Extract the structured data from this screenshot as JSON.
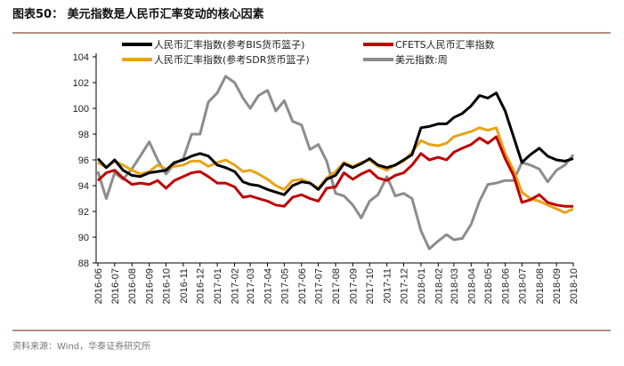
{
  "header": {
    "title": "图表50：  美元指数是人民币汇率变动的核心因素"
  },
  "footer": {
    "source": "资料来源：Wind，华泰证券研究所"
  },
  "colors": {
    "rule": "#9a6a5a",
    "bis": "#000000",
    "cfets": "#c00000",
    "sdr": "#e8a317",
    "dxy": "#8c8c8c"
  },
  "chart_data": {
    "type": "line",
    "title": "",
    "xlabel": "",
    "ylabel": "",
    "ylim": [
      88,
      104
    ],
    "yticks": [
      "88",
      "90",
      "92",
      "94",
      "96",
      "98",
      "100",
      "102",
      "104"
    ],
    "xlim": [
      "2016-06-01",
      "2018-10-01"
    ],
    "xticks": [
      "2016-06",
      "2016-07",
      "2016-08",
      "2016-09",
      "2016-10",
      "2016-11",
      "2016-12",
      "2017-01",
      "2017-02",
      "2017-03",
      "2017-04",
      "2017-05",
      "2017-06",
      "2017-07",
      "2017-08",
      "2017-09",
      "2017-10",
      "2017-11",
      "2017-12",
      "2018-01",
      "2018-02",
      "2018-03",
      "2018-04",
      "2018-05",
      "2018-06",
      "2018-07",
      "2018-08",
      "2018-09",
      "2018-10"
    ],
    "grid": false,
    "legend_position": "top",
    "x": [
      "2016-06-01",
      "2016-06-16",
      "2016-07-01",
      "2016-07-16",
      "2016-08-01",
      "2016-08-16",
      "2016-09-01",
      "2016-09-16",
      "2016-10-01",
      "2016-10-16",
      "2016-11-01",
      "2016-11-16",
      "2016-12-01",
      "2016-12-16",
      "2017-01-01",
      "2017-01-16",
      "2017-02-01",
      "2017-02-16",
      "2017-03-01",
      "2017-03-16",
      "2017-04-01",
      "2017-04-16",
      "2017-05-01",
      "2017-05-16",
      "2017-06-01",
      "2017-06-16",
      "2017-07-01",
      "2017-07-16",
      "2017-08-01",
      "2017-08-16",
      "2017-09-01",
      "2017-09-16",
      "2017-10-01",
      "2017-10-16",
      "2017-11-01",
      "2017-11-16",
      "2017-12-01",
      "2017-12-16",
      "2018-01-01",
      "2018-01-16",
      "2018-02-01",
      "2018-02-16",
      "2018-03-01",
      "2018-03-16",
      "2018-04-01",
      "2018-04-16",
      "2018-05-01",
      "2018-05-16",
      "2018-06-01",
      "2018-06-16",
      "2018-07-01",
      "2018-07-16",
      "2018-08-01",
      "2018-08-16",
      "2018-09-01",
      "2018-09-16",
      "2018-10-01"
    ],
    "series": [
      {
        "name": "人民币汇率指数(参考BIS货币篮子)",
        "color": "#000000",
        "values": [
          96.1,
          95.4,
          96.0,
          95.2,
          94.8,
          94.7,
          95.0,
          95.1,
          95.2,
          95.8,
          96.0,
          96.3,
          96.5,
          96.3,
          95.6,
          95.4,
          95.1,
          94.3,
          94.1,
          94.0,
          93.7,
          93.5,
          93.3,
          94.0,
          94.3,
          94.2,
          93.7,
          94.5,
          94.8,
          95.7,
          95.4,
          95.7,
          96.1,
          95.6,
          95.4,
          95.6,
          96.0,
          96.4,
          98.5,
          98.6,
          98.8,
          98.8,
          99.3,
          99.6,
          100.2,
          101.0,
          100.8,
          101.2,
          99.8,
          97.8,
          95.8,
          96.4,
          96.9,
          96.3,
          96.0,
          95.9,
          96.1
        ]
      },
      {
        "name": "CFETS人民币汇率指数",
        "color": "#c00000",
        "values": [
          94.4,
          95.0,
          95.2,
          94.6,
          94.1,
          94.2,
          94.1,
          94.4,
          93.8,
          94.4,
          94.7,
          95.0,
          95.1,
          94.7,
          94.2,
          94.2,
          93.9,
          93.1,
          93.2,
          93.0,
          92.8,
          92.5,
          92.4,
          93.1,
          93.3,
          93.0,
          92.8,
          93.8,
          93.9,
          95.0,
          94.5,
          94.9,
          95.2,
          94.6,
          94.4,
          94.8,
          95.0,
          95.6,
          96.5,
          96.0,
          96.2,
          96.0,
          96.6,
          96.9,
          97.2,
          97.7,
          97.3,
          97.8,
          96.1,
          94.8,
          92.7,
          92.9,
          93.3,
          92.7,
          92.5,
          92.4,
          92.4
        ]
      },
      {
        "name": "人民币汇率指数(参考SDR货币篮子)",
        "color": "#e8a317",
        "values": [
          95.8,
          95.4,
          95.9,
          95.6,
          95.2,
          94.9,
          95.1,
          95.6,
          95.3,
          95.5,
          95.6,
          95.9,
          95.9,
          95.5,
          95.8,
          96.0,
          95.6,
          95.1,
          95.2,
          94.9,
          94.5,
          94.0,
          93.7,
          94.4,
          94.5,
          94.2,
          93.8,
          94.6,
          95.1,
          95.8,
          95.5,
          95.8,
          96.0,
          95.5,
          95.2,
          95.6,
          95.9,
          96.6,
          97.5,
          97.2,
          97.1,
          97.3,
          97.8,
          98.0,
          98.2,
          98.5,
          98.3,
          98.5,
          96.5,
          95.2,
          93.5,
          93.0,
          92.8,
          92.5,
          92.2,
          91.9,
          92.2
        ]
      },
      {
        "name": "美元指数:周",
        "color": "#8c8c8c",
        "values": [
          95.1,
          93.0,
          95.0,
          94.5,
          95.3,
          96.3,
          97.4,
          96.0,
          94.9,
          95.7,
          96.1,
          98.0,
          98.0,
          100.5,
          101.2,
          102.5,
          102.0,
          100.8,
          100.0,
          101.0,
          101.4,
          99.8,
          100.6,
          99.0,
          98.7,
          96.8,
          97.2,
          95.9,
          93.4,
          93.2,
          92.5,
          91.5,
          92.8,
          93.3,
          94.7,
          93.2,
          93.4,
          93.0,
          90.5,
          89.1,
          89.7,
          90.2,
          89.8,
          89.9,
          91.0,
          92.8,
          94.1,
          94.2,
          94.4,
          94.4,
          95.8,
          95.6,
          95.3,
          94.3,
          95.2,
          95.6,
          96.4
        ]
      }
    ]
  }
}
